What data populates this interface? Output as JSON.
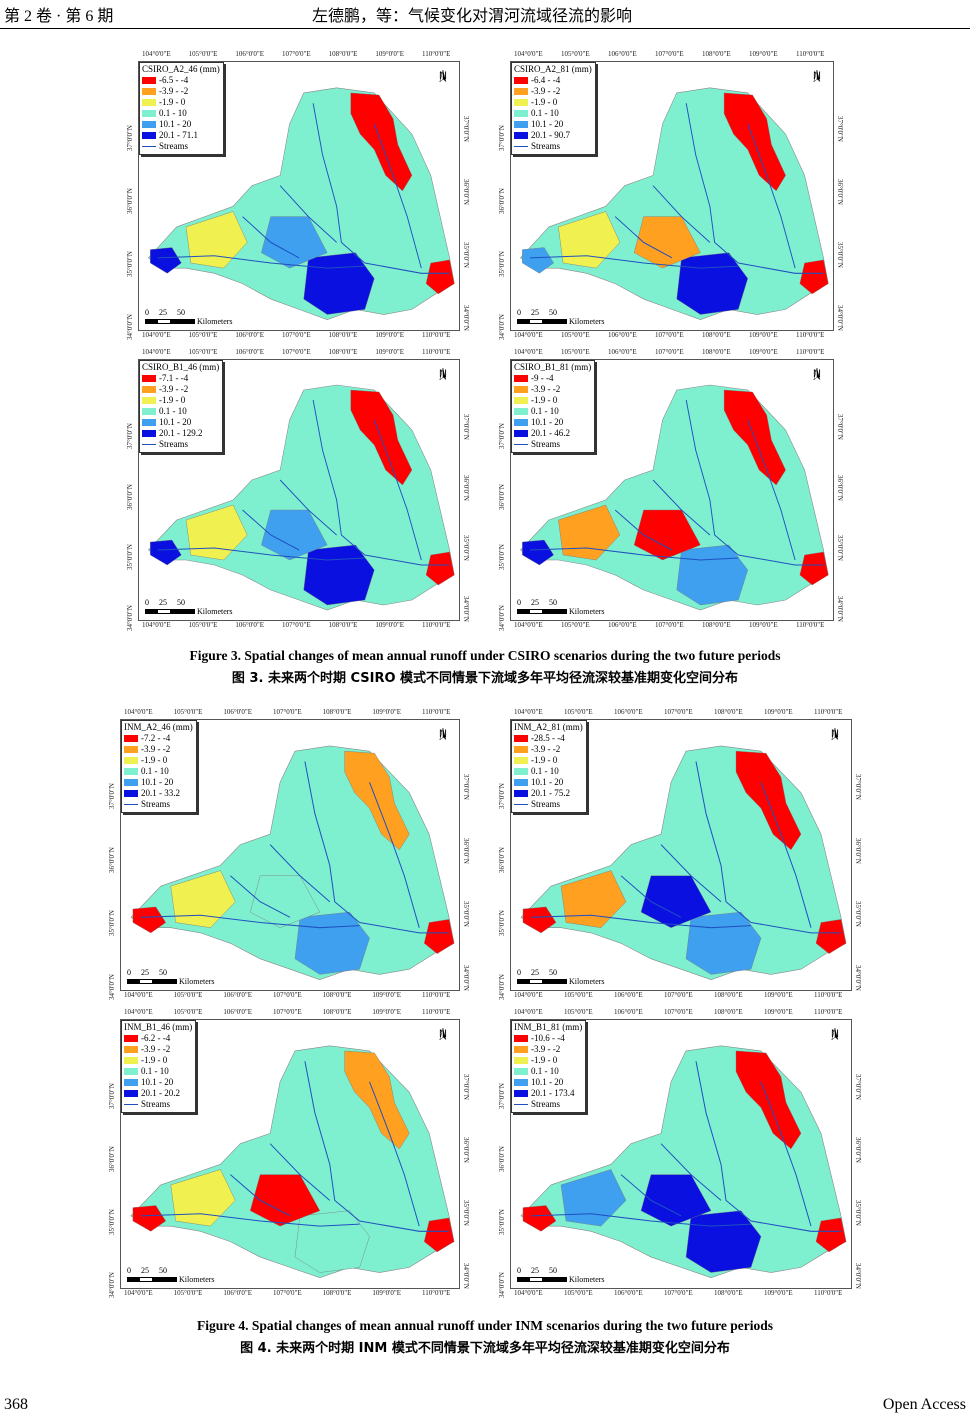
{
  "header": {
    "left": "第 2 卷 · 第 6 期",
    "center": "左德鹏，等：气候变化对渭河流域径流的影响"
  },
  "lon_ticks": [
    "104°0'0\"E",
    "105°0'0\"E",
    "106°0'0\"E",
    "107°0'0\"E",
    "108°0'0\"E",
    "109°0'0\"E",
    "110°0'0\"E"
  ],
  "lat_ticks": [
    "37°0'0\"N",
    "36°0'0\"N",
    "35°0'0\"N",
    "34°0'0\"N"
  ],
  "colors": {
    "c1": "#ff0000",
    "c2": "#ffa020",
    "c3": "#f0f050",
    "c4": "#7ef0d0",
    "c5": "#3fa0f0",
    "c6": "#0a10e0",
    "stream": "#2050c0"
  },
  "common": {
    "north": "N",
    "scale": "0     25     50",
    "units": "Kilometers",
    "streams": "Streams"
  },
  "panels": [
    {
      "title": "CSIRO_A2_46 (mm)",
      "classes": [
        "-6.5 - -4",
        "-3.9 - -2",
        "-1.9 - 0",
        "0.1 - 10",
        "10.1 - 20",
        "20.1 - 71.1"
      ]
    },
    {
      "title": "CSIRO_A2_81 (mm)",
      "classes": [
        "-6.4 - -4",
        "-3.9 - -2",
        "-1.9 - 0",
        "0.1 - 10",
        "10.1 - 20",
        "20.1 - 90.7"
      ]
    },
    {
      "title": "CSIRO_B1_46 (mm)",
      "classes": [
        "-7.1 - -4",
        "-3.9 - -2",
        "-1.9 - 0",
        "0.1 - 10",
        "10.1 - 20",
        "20.1 - 129.2"
      ]
    },
    {
      "title": "CSIRO_B1_81 (mm)",
      "classes": [
        "-9 - -4",
        "-3.9 - -2",
        "-1.9 - 0",
        "0.1 - 10",
        "10.1 - 20",
        "20.1 - 46.2"
      ]
    },
    {
      "title": "INM_A2_46 (mm)",
      "classes": [
        "-7.2 - -4",
        "-3.9 - -2",
        "-1.9 - 0",
        "0.1 - 10",
        "10.1 - 20",
        "20.1 - 33.2"
      ]
    },
    {
      "title": "INM_A2_81 (mm)",
      "classes": [
        "-28.5 - -4",
        "-3.9 - -2",
        "-1.9 - 0",
        "0.1 - 10",
        "10.1 - 20",
        "20.1 - 75.2"
      ]
    },
    {
      "title": "INM_B1_46 (mm)",
      "classes": [
        "-6.2 - -4",
        "-3.9 - -2",
        "-1.9 - 0",
        "0.1 - 10",
        "10.1 - 20",
        "20.1 - 20.2"
      ]
    },
    {
      "title": "INM_B1_81 (mm)",
      "classes": [
        "-10.6 - -4",
        "-3.9 - -2",
        "-1.9 - 0",
        "0.1 - 10",
        "10.1 - 20",
        "20.1 - 173.4"
      ]
    }
  ],
  "fig3": {
    "en": "Figure 3. Spatial changes of mean annual runoff under CSIRO scenarios during the two future periods",
    "cn": "图 3.  未来两个时期 CSIRO 模式不同情景下流域多年平均径流深较基准期变化空间分布"
  },
  "fig4": {
    "en": "Figure 4. Spatial changes of mean annual runoff under INM scenarios during the two future periods",
    "cn": "图 4.  未来两个时期 INM 模式不同情景下流域多年平均径流深较基准期变化空间分布"
  },
  "footer": {
    "page": "368",
    "right": "Open Access"
  }
}
